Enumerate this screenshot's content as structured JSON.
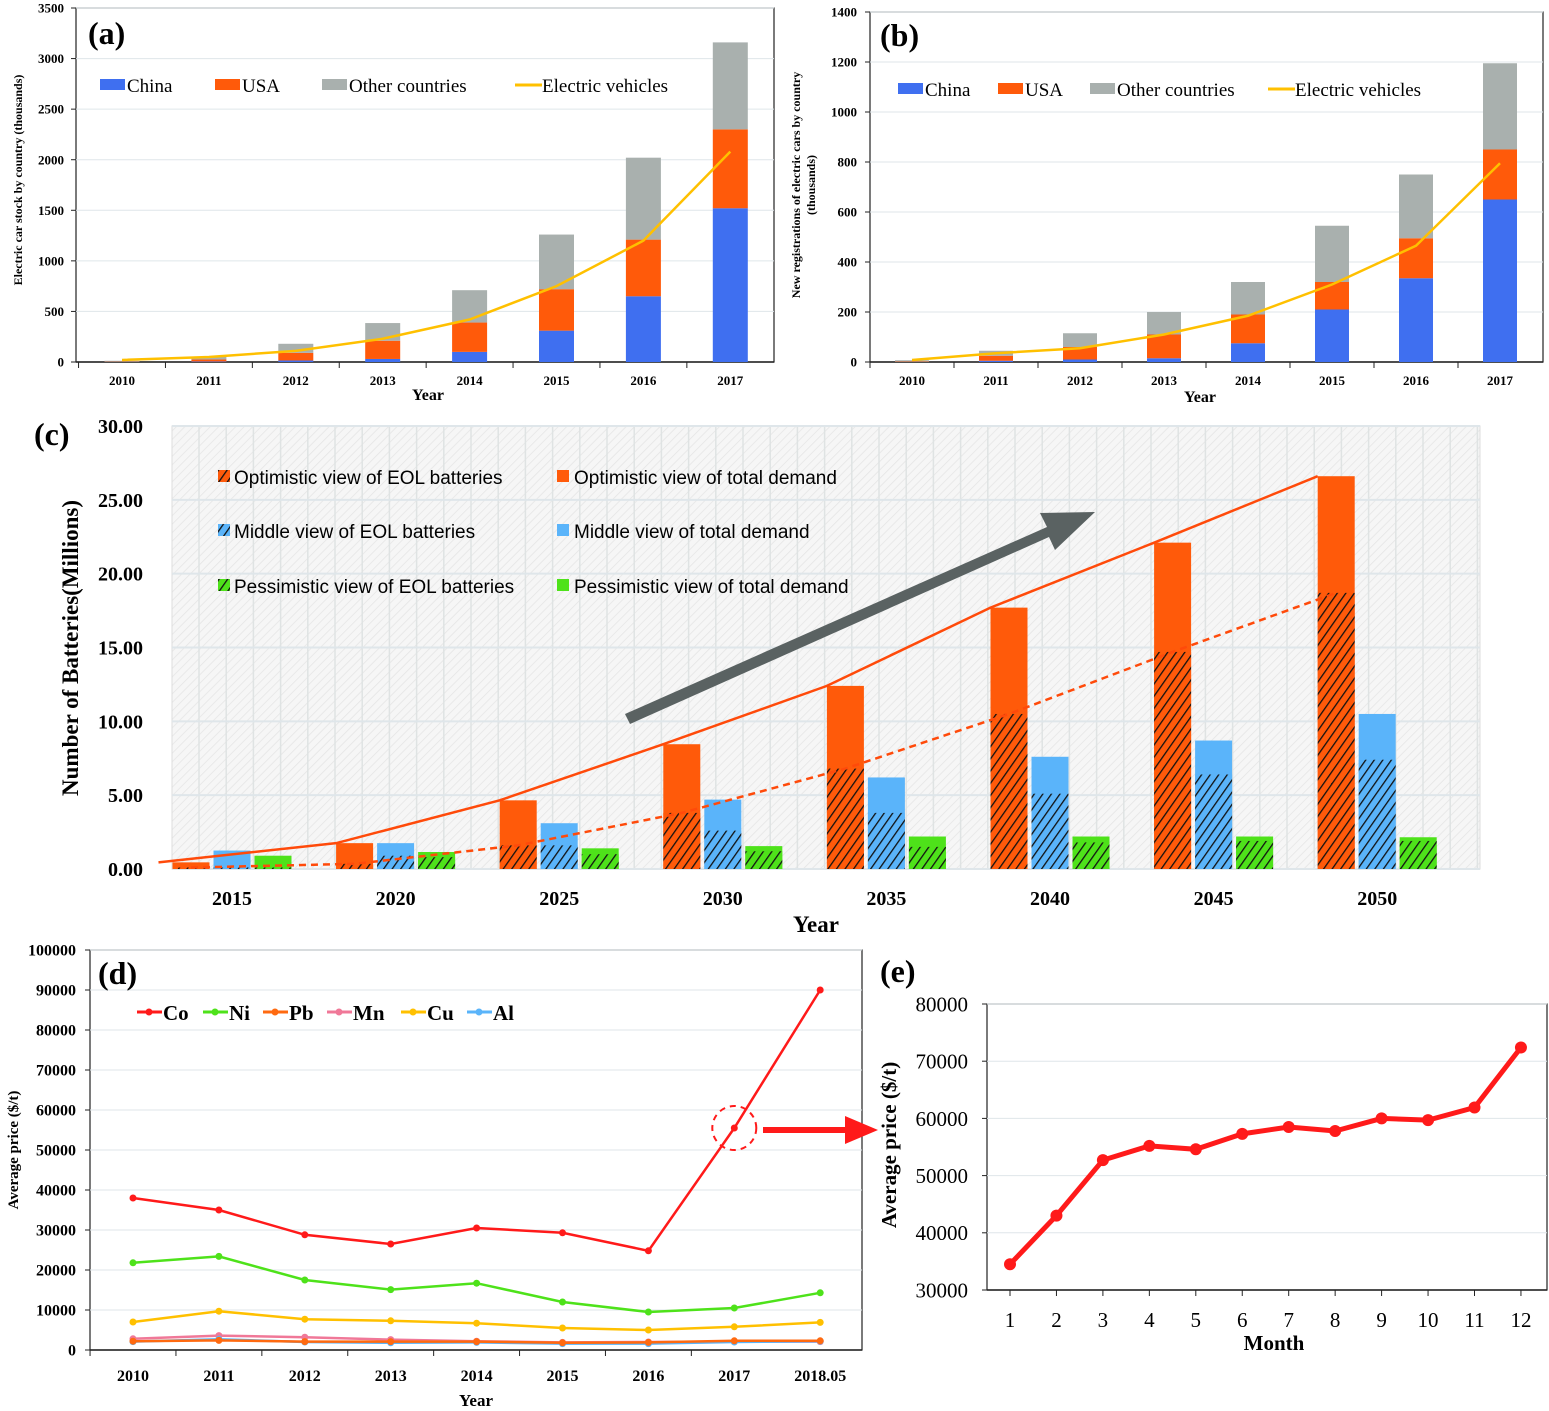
{
  "chart_data": [
    {
      "panel_label": "(a)",
      "type": "bar",
      "stacked": true,
      "xlabel": "Year",
      "ylabel": "Electric car stock by country (thousands)",
      "categories": [
        "2010",
        "2011",
        "2012",
        "2013",
        "2014",
        "2015",
        "2016",
        "2017"
      ],
      "ylim": [
        0,
        3500
      ],
      "yticks": [
        "0",
        "500",
        "1000",
        "1500",
        "2000",
        "2500",
        "3000",
        "3500"
      ],
      "series": [
        {
          "name": "China",
          "color": "#3f6ff0",
          "values": [
            1,
            5,
            15,
            30,
            100,
            310,
            650,
            1520
          ]
        },
        {
          "name": "USA",
          "color": "#ff5a0a",
          "values": [
            3,
            20,
            75,
            180,
            290,
            410,
            560,
            780
          ]
        },
        {
          "name": "Other countries",
          "color": "#a9b0ae",
          "values": [
            8,
            25,
            90,
            175,
            320,
            540,
            810,
            860
          ]
        }
      ],
      "line": {
        "name": "Electric vehicles",
        "color": "#ffc000",
        "values": [
          20,
          50,
          110,
          230,
          420,
          750,
          1200,
          2080
        ]
      },
      "grid": true
    },
    {
      "panel_label": "(b)",
      "type": "bar",
      "stacked": true,
      "xlabel": "Year",
      "ylabel": [
        "New registrations of electric cars by country",
        "(thousands)"
      ],
      "categories": [
        "2010",
        "2011",
        "2012",
        "2013",
        "2014",
        "2015",
        "2016",
        "2017"
      ],
      "ylim": [
        0,
        1400
      ],
      "yticks": [
        "0",
        "200",
        "400",
        "600",
        "800",
        "1000",
        "1200",
        "1400"
      ],
      "series": [
        {
          "name": "China",
          "color": "#3f6ff0",
          "values": [
            0.5,
            5,
            10,
            15,
            75,
            210,
            335,
            650
          ]
        },
        {
          "name": "USA",
          "color": "#ff5a0a",
          "values": [
            1.5,
            20,
            50,
            95,
            115,
            110,
            160,
            200
          ]
        },
        {
          "name": "Other countries",
          "color": "#a9b0ae",
          "values": [
            5,
            20,
            55,
            90,
            130,
            225,
            255,
            345
          ]
        }
      ],
      "line": {
        "name": "Electric vehicles",
        "color": "#ffc000",
        "values": [
          8,
          35,
          55,
          110,
          185,
          310,
          465,
          795
        ]
      },
      "grid": true
    },
    {
      "panel_label": "(c)",
      "type": "bar",
      "xlabel": "Year",
      "ylabel": "Number of Batteries(Millions)",
      "categories": [
        "2015",
        "2020",
        "2025",
        "2030",
        "2035",
        "2040",
        "2045",
        "2050"
      ],
      "ylim": [
        0,
        30
      ],
      "yticks": [
        "0.00",
        "5.00",
        "10.00",
        "15.00",
        "20.00",
        "25.00",
        "30.00"
      ],
      "groups": [
        {
          "total_name": "Optimistic view of total demand",
          "eol_name": "Optimistic view of  EOL batteries",
          "color": "#ff5a0a",
          "total": [
            0.45,
            1.75,
            4.65,
            8.45,
            12.4,
            17.7,
            22.1,
            26.6
          ],
          "eol": [
            0.1,
            0.35,
            1.6,
            3.8,
            6.8,
            10.5,
            14.7,
            18.7
          ]
        },
        {
          "total_name": "Middle view of total demand",
          "eol_name": "Middle view of EOL batteries",
          "color": "#5ab4fa",
          "total": [
            1.25,
            1.75,
            3.1,
            4.7,
            6.2,
            7.6,
            8.7,
            10.5
          ],
          "eol": [
            0.1,
            0.9,
            1.6,
            2.6,
            3.8,
            5.1,
            6.4,
            7.4
          ]
        },
        {
          "total_name": "Pessimistic view of total demand",
          "eol_name": "Pessimistic view of EOL batteries",
          "color": "#4ee21a",
          "total": [
            0.9,
            1.15,
            1.4,
            1.55,
            2.2,
            2.2,
            2.2,
            2.15
          ],
          "eol": [
            0.1,
            0.8,
            1.0,
            1.2,
            1.5,
            1.8,
            1.9,
            1.9
          ]
        }
      ],
      "trendlines": [
        "solid through optimistic total demand",
        "dashed through optimistic EOL batteries"
      ],
      "annotation_arrow_color": "#5a6262",
      "grid": true
    },
    {
      "panel_label": "(d)",
      "type": "line",
      "xlabel": "Year",
      "ylabel": "Average price ($/t)",
      "categories": [
        "2010",
        "2011",
        "2012",
        "2013",
        "2014",
        "2015",
        "2016",
        "2017",
        "2018.05"
      ],
      "ylim": [
        0,
        100000
      ],
      "yticks": [
        "0",
        "10000",
        "20000",
        "30000",
        "40000",
        "50000",
        "60000",
        "70000",
        "80000",
        "90000",
        "100000"
      ],
      "series": [
        {
          "name": "Co",
          "color": "#ff1a1a",
          "values": [
            38000,
            35000,
            28800,
            26500,
            30500,
            29300,
            24800,
            55500,
            90000
          ]
        },
        {
          "name": "Ni",
          "color": "#4ee21a",
          "values": [
            21800,
            23400,
            17500,
            15100,
            16700,
            12000,
            9500,
            10500,
            14300
          ]
        },
        {
          "name": "Pb",
          "color": "#ff6a10",
          "values": [
            2200,
            2400,
            2100,
            2100,
            2100,
            1800,
            1900,
            2300,
            2300
          ]
        },
        {
          "name": "Mn",
          "color": "#f07898",
          "values": [
            2800,
            3600,
            3200,
            2600,
            2200,
            1900,
            2000,
            2100,
            2100
          ]
        },
        {
          "name": "Cu",
          "color": "#ffc000",
          "values": [
            7000,
            9700,
            7700,
            7300,
            6700,
            5500,
            5000,
            5800,
            6900
          ]
        },
        {
          "name": "Al",
          "color": "#5ab4fa",
          "values": [
            2100,
            2700,
            2000,
            1800,
            1900,
            1600,
            1600,
            2000,
            2200
          ]
        }
      ],
      "highlight": {
        "category": "2017",
        "series": "Co",
        "color": "#ff1a1a"
      },
      "grid": true
    },
    {
      "panel_label": "(e)",
      "type": "line",
      "xlabel": "Month",
      "ylabel": "Average price ($/t)",
      "categories": [
        "1",
        "2",
        "3",
        "4",
        "5",
        "6",
        "7",
        "8",
        "9",
        "10",
        "11",
        "12"
      ],
      "ylim": [
        30000,
        80000
      ],
      "yticks": [
        "30000",
        "40000",
        "50000",
        "60000",
        "70000",
        "80000"
      ],
      "series": [
        {
          "color": "#ff1a1a",
          "values": [
            34500,
            43000,
            52700,
            55200,
            54600,
            57300,
            58500,
            57800,
            60000,
            59700,
            61900,
            72400
          ]
        }
      ],
      "grid": true
    }
  ]
}
